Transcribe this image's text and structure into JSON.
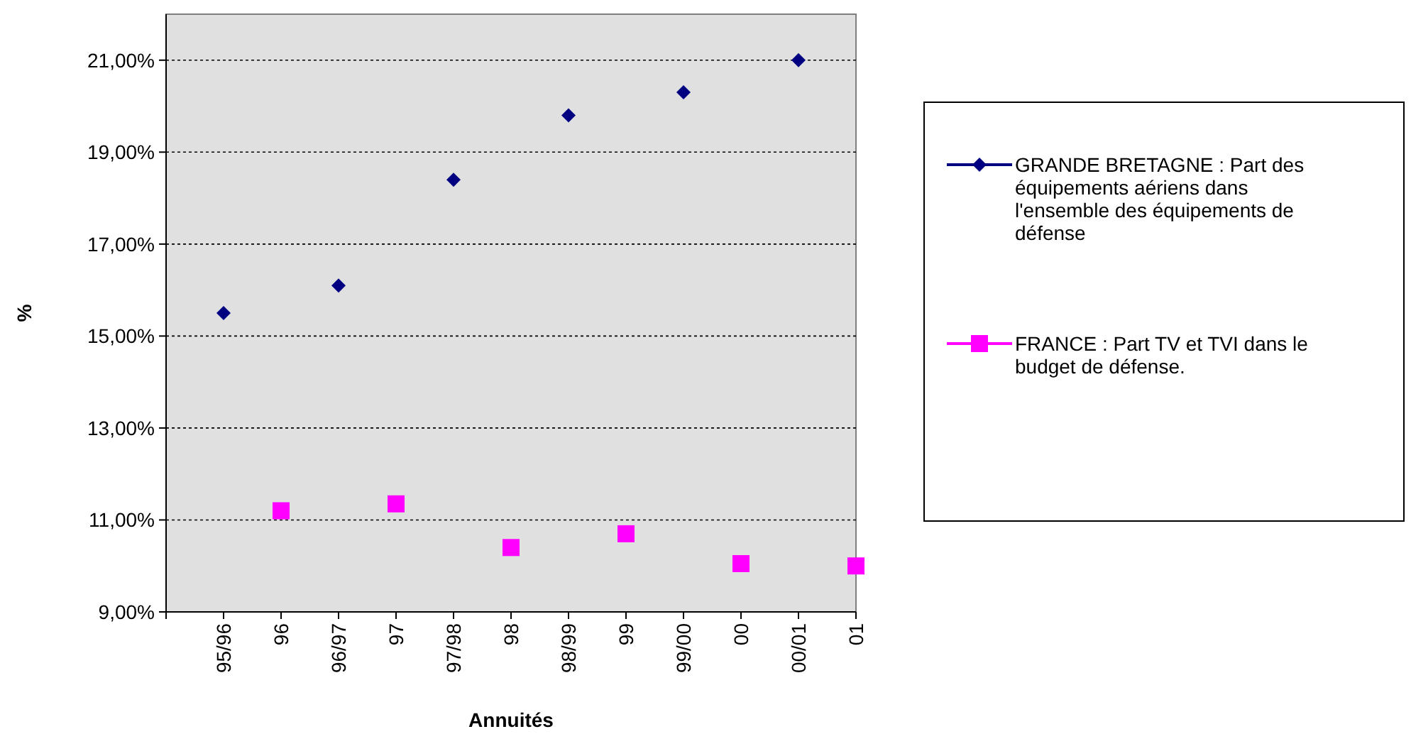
{
  "chart_data": {
    "type": "scatter",
    "xlabel": "Annuités",
    "ylabel": "%",
    "categories": [
      "95/96",
      "96",
      "96/97",
      "97",
      "97/98",
      "98",
      "98/99",
      "99",
      "99/00",
      "00",
      "00/01",
      "01"
    ],
    "series": [
      {
        "name": "GRANDE BRETAGNE : Part des équipements aériens dans l'ensemble des équipements de défense",
        "color": "#000080",
        "marker": "diamond",
        "values": [
          15.5,
          null,
          16.1,
          null,
          18.4,
          null,
          19.8,
          null,
          20.3,
          null,
          21.0,
          null
        ]
      },
      {
        "name": "FRANCE : Part TV et TVI dans le budget de défense.",
        "color": "#ff00ff",
        "marker": "square",
        "values": [
          null,
          11.2,
          null,
          11.35,
          null,
          10.4,
          null,
          10.7,
          null,
          10.05,
          null,
          10.0
        ]
      }
    ],
    "ylim": [
      9,
      22
    ],
    "yticks": [
      {
        "value": 9,
        "label": "9,00%"
      },
      {
        "value": 11,
        "label": "11,00%"
      },
      {
        "value": 13,
        "label": "13,00%"
      },
      {
        "value": 15,
        "label": "15,00%"
      },
      {
        "value": 17,
        "label": "17,00%"
      },
      {
        "value": 19,
        "label": "19,00%"
      },
      {
        "value": 21,
        "label": "21,00%"
      }
    ],
    "grid": "y",
    "legend": "right"
  }
}
